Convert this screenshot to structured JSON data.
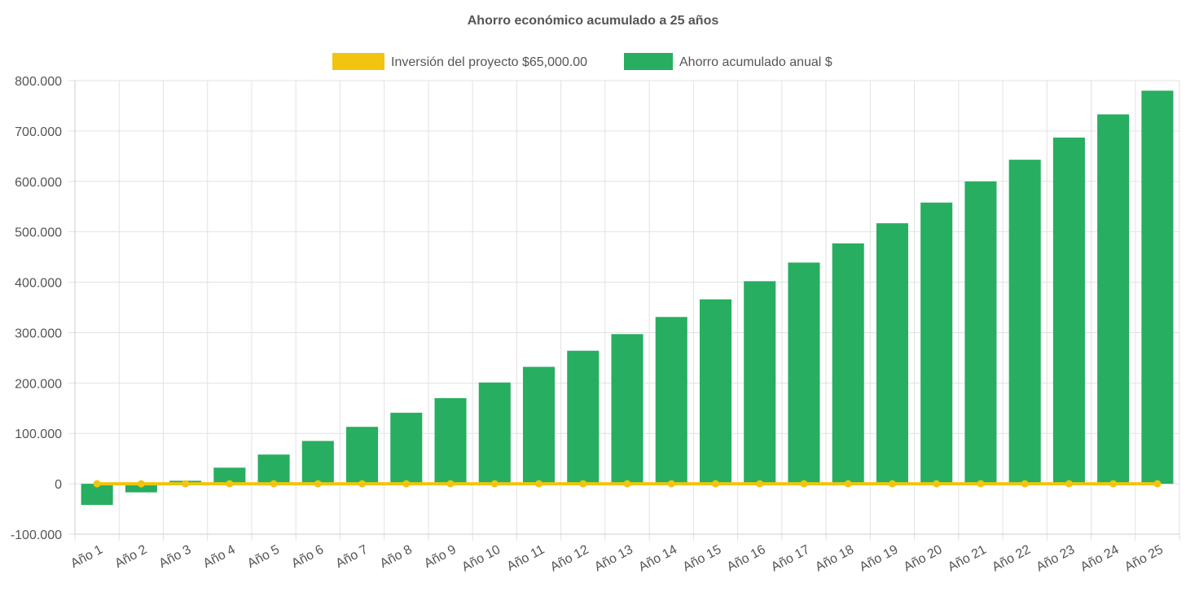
{
  "chart_data": {
    "type": "bar",
    "title": "Ahorro económico acumulado a 25 años",
    "categories": [
      "Año 1",
      "Año 2",
      "Año 3",
      "Año 4",
      "Año 5",
      "Año 6",
      "Año 7",
      "Año 8",
      "Año 9",
      "Año 10",
      "Año 11",
      "Año 12",
      "Año 13",
      "Año 14",
      "Año 15",
      "Año 16",
      "Año 17",
      "Año 18",
      "Año 19",
      "Año 20",
      "Año 21",
      "Año 22",
      "Año 23",
      "Año 24",
      "Año 25"
    ],
    "ylim": [
      -100000,
      800000
    ],
    "yticks": [
      800000,
      700000,
      600000,
      500000,
      400000,
      300000,
      200000,
      100000,
      0,
      -100000
    ],
    "ytick_labels": [
      "800.000",
      "700.000",
      "600.000",
      "500.000",
      "400.000",
      "300.000",
      "200.000",
      "100.000",
      "0",
      "-100.000"
    ],
    "grid": true,
    "legend_position": "top-center",
    "series": [
      {
        "name": "Inversión del proyecto $65,000.00",
        "type": "line",
        "color": "#f1c40f",
        "values": [
          0,
          0,
          0,
          0,
          0,
          0,
          0,
          0,
          0,
          0,
          0,
          0,
          0,
          0,
          0,
          0,
          0,
          0,
          0,
          0,
          0,
          0,
          0,
          0,
          0
        ]
      },
      {
        "name": "Ahorro acumulado anual $",
        "type": "bar",
        "color": "#27ae60",
        "values": [
          -42000,
          -17000,
          6000,
          32000,
          58000,
          85000,
          113000,
          141000,
          170000,
          201000,
          232000,
          264000,
          297000,
          331000,
          366000,
          402000,
          439000,
          477000,
          517000,
          558000,
          600000,
          643000,
          687000,
          733000,
          780000
        ]
      }
    ]
  }
}
